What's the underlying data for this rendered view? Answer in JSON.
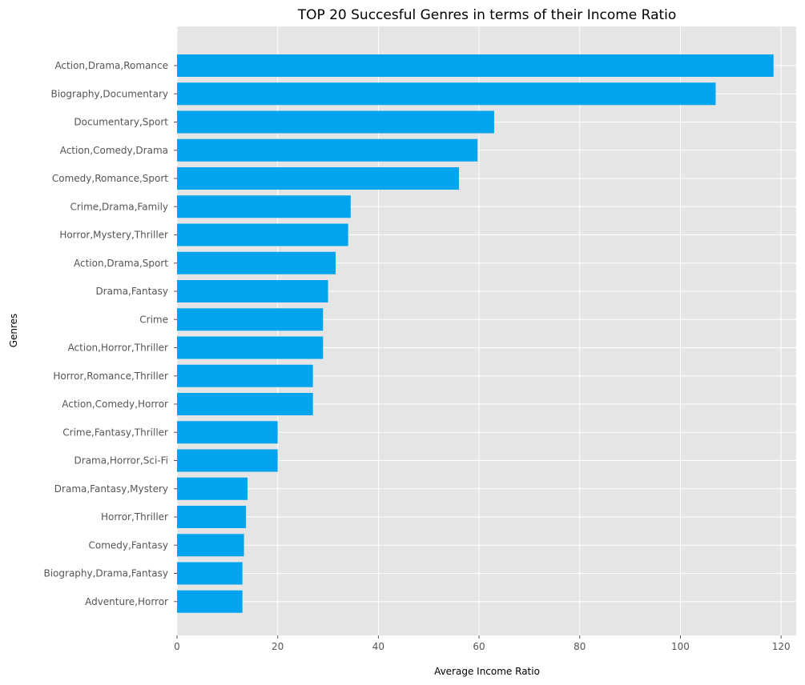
{
  "chart_data": {
    "type": "bar",
    "orientation": "horizontal",
    "title": "TOP 20 Succesful Genres in terms of their Income Ratio",
    "xlabel": "Average Income Ratio",
    "ylabel": "Genres",
    "xlim": [
      0,
      123
    ],
    "xticks": [
      0,
      20,
      40,
      60,
      80,
      100,
      120
    ],
    "grid": true,
    "colors": {
      "bar": "#03a4ee",
      "plot_bg": "#e5e5e5",
      "grid": "#ffffff"
    },
    "categories": [
      "Action,Drama,Romance",
      "Biography,Documentary",
      "Documentary,Sport",
      "Action,Comedy,Drama",
      "Comedy,Romance,Sport",
      "Crime,Drama,Family",
      "Horror,Mystery,Thriller",
      "Action,Drama,Sport",
      "Drama,Fantasy",
      "Crime",
      "Action,Horror,Thriller",
      "Horror,Romance,Thriller",
      "Action,Comedy,Horror",
      "Crime,Fantasy,Thriller",
      "Drama,Horror,Sci-Fi",
      "Drama,Fantasy,Mystery",
      "Horror,Thriller",
      "Comedy,Fantasy",
      "Biography,Drama,Fantasy",
      "Adventure,Horror"
    ],
    "values": [
      118.5,
      107,
      63,
      59.7,
      56,
      34.5,
      34,
      31.5,
      30,
      29,
      29,
      27,
      27,
      20,
      20,
      14,
      13.7,
      13.3,
      13,
      13
    ]
  }
}
